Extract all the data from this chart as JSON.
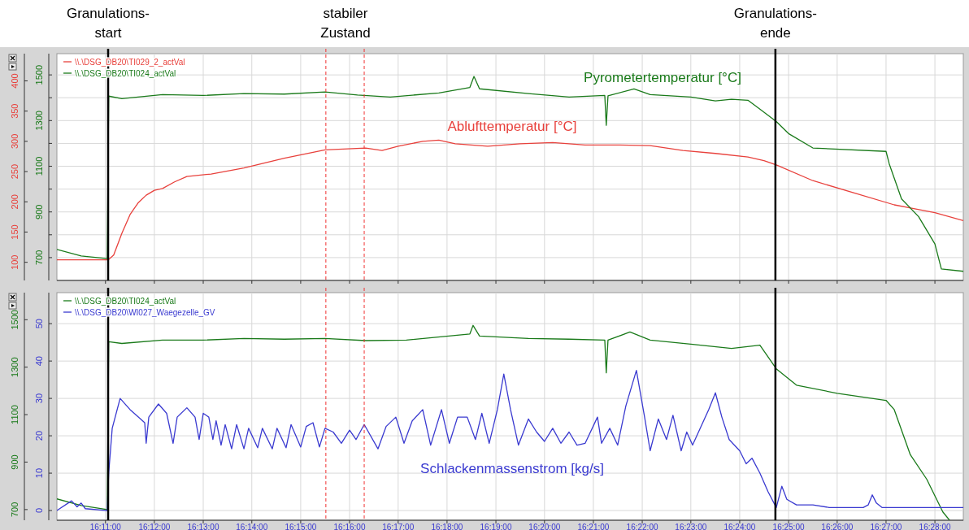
{
  "chart_data": [
    {
      "type": "line",
      "xlim": [
        16.1667,
        16.4764
      ],
      "xticks": [
        {
          "value": 16.1833,
          "label": null
        },
        {
          "value": 16.2,
          "label": null
        },
        {
          "value": 16.2167,
          "label": null
        },
        {
          "value": 16.2333,
          "label": null
        },
        {
          "value": 16.25,
          "label": null
        },
        {
          "value": 16.2667,
          "label": null
        },
        {
          "value": 16.2833,
          "label": null
        },
        {
          "value": 16.3,
          "label": null
        },
        {
          "value": 16.3167,
          "label": null
        },
        {
          "value": 16.3333,
          "label": null
        },
        {
          "value": 16.35,
          "label": null
        },
        {
          "value": 16.3667,
          "label": null
        },
        {
          "value": 16.3833,
          "label": null
        },
        {
          "value": 16.4,
          "label": null
        },
        {
          "value": 16.4167,
          "label": null
        },
        {
          "value": 16.4333,
          "label": null
        },
        {
          "value": 16.45,
          "label": null
        },
        {
          "value": 16.4667,
          "label": null
        }
      ],
      "ylim": [
        70,
        445
      ],
      "yticks": [
        100,
        150,
        200,
        250,
        300,
        350,
        400
      ],
      "y2lim": [
        600,
        1593
      ],
      "y2ticks": [
        700,
        {
          "value": 800,
          "label": null
        },
        900,
        {
          "value": 1000,
          "label": null
        },
        1100,
        {
          "value": 1200,
          "label": null
        },
        1300,
        {
          "value": 1400,
          "label": null
        },
        1500
      ],
      "tick_labels": "y",
      "grid": true,
      "legend": "top left",
      "series": [
        {
          "name": "\\\\.\\DSG_DB20\\TI029_2_actVal",
          "color": "#e8413c",
          "axis": "y",
          "x": [
            16.1667,
            16.1842,
            16.1861,
            16.1889,
            16.1917,
            16.1944,
            16.1972,
            16.2,
            16.2028,
            16.2069,
            16.2111,
            16.2194,
            16.2306,
            16.2444,
            16.2583,
            16.2722,
            16.2778,
            16.2833,
            16.2917,
            16.2972,
            16.3028,
            16.3139,
            16.325,
            16.3361,
            16.3472,
            16.3583,
            16.3694,
            16.3806,
            16.3917,
            16.4028,
            16.4083,
            16.4125,
            16.425,
            16.4389,
            16.4528,
            16.4667,
            16.4764
          ],
          "values": [
            104,
            104,
            112,
            148,
            179,
            198,
            211,
            219,
            222,
            233,
            242,
            246,
            256,
            272,
            286,
            289,
            285,
            292,
            300,
            302,
            296,
            292,
            296,
            298,
            294,
            294,
            293,
            285,
            280,
            274,
            268,
            261,
            235,
            215,
            195,
            182,
            169
          ]
        },
        {
          "name": "\\\\.\\DSG_DB20\\TI024_actVal",
          "color": "#1a7a1a",
          "axis": "y2",
          "x": [
            16.1667,
            16.175,
            16.1839,
            16.1844,
            16.1889,
            16.1944,
            16.2028,
            16.2167,
            16.2306,
            16.2444,
            16.2583,
            16.2694,
            16.2806,
            16.2972,
            16.3078,
            16.3092,
            16.3111,
            16.3278,
            16.3417,
            16.3539,
            16.3544,
            16.355,
            16.3639,
            16.3694,
            16.3833,
            16.3917,
            16.3972,
            16.4028,
            16.4069,
            16.4125,
            16.4167,
            16.425,
            16.45,
            16.4511,
            16.4553,
            16.4611,
            16.4667,
            16.4689,
            16.4764
          ],
          "values": [
            736,
            707,
            696,
            1407,
            1396,
            1403,
            1414,
            1410,
            1418,
            1416,
            1425,
            1412,
            1403,
            1421,
            1445,
            1493,
            1439,
            1418,
            1403,
            1410,
            1279,
            1408,
            1439,
            1414,
            1403,
            1386,
            1393,
            1389,
            1350,
            1296,
            1243,
            1180,
            1165,
            1110,
            957,
            880,
            760,
            650,
            640
          ]
        }
      ],
      "ref_lines": [
        {
          "axis": "x",
          "value": 16.1842,
          "label": "Granulations-\nstart",
          "color": "#000000",
          "line_style": "solid"
        },
        {
          "axis": "x",
          "value": 16.2586,
          "label": null,
          "color": "#f03030",
          "line_style": "dashed"
        },
        {
          "axis": "x",
          "value": 16.2717,
          "label": null,
          "color": "#f03030",
          "line_style": "dashed"
        },
        {
          "axis": "x",
          "value": 16.4122,
          "label": "Granulations-\nende",
          "color": "#000000",
          "line_style": "solid"
        }
      ],
      "annotations": [
        "stabiler\nZustand",
        "Pyrometertemperatur [°C]",
        "Ablufttemperatur [°C]"
      ]
    },
    {
      "type": "line",
      "xlim": [
        16.1667,
        16.4764
      ],
      "xticks": [
        {
          "value": 16.1833,
          "label": "16:11:00"
        },
        {
          "value": 16.2,
          "label": "16:12:00"
        },
        {
          "value": 16.2167,
          "label": "16:13:00"
        },
        {
          "value": 16.2333,
          "label": "16:14:00"
        },
        {
          "value": 16.25,
          "label": "16:15:00"
        },
        {
          "value": 16.2667,
          "label": "16:16:00"
        },
        {
          "value": 16.2833,
          "label": "16:17:00"
        },
        {
          "value": 16.3,
          "label": "16:18:00"
        },
        {
          "value": 16.3167,
          "label": "16:19:00"
        },
        {
          "value": 16.3333,
          "label": "16:20:00"
        },
        {
          "value": 16.35,
          "label": "16:21:00"
        },
        {
          "value": 16.3667,
          "label": "16:22:00"
        },
        {
          "value": 16.3833,
          "label": "16:23:00"
        },
        {
          "value": 16.4,
          "label": "16:24:00"
        },
        {
          "value": 16.4167,
          "label": "16:25:00"
        },
        {
          "value": 16.4333,
          "label": "16:26:00"
        },
        {
          "value": 16.45,
          "label": "16:27:00"
        },
        {
          "value": 16.4667,
          "label": "16:28:00"
        }
      ],
      "ylim": [
        655,
        1614
      ],
      "yticks": [
        700,
        900,
        1100,
        1300,
        1500
      ],
      "y2lim": [
        -2.6,
        58.3
      ],
      "y2ticks": [
        0,
        10,
        20,
        30,
        40,
        50
      ],
      "grid": true,
      "legend": "top left",
      "series": [
        {
          "name": "\\\\.\\DSG_DB20\\TI024_actVal",
          "color": "#1a7a1a",
          "axis": "y",
          "x": [
            16.1667,
            16.175,
            16.1839,
            16.1844,
            16.1889,
            16.2028,
            16.2167,
            16.2306,
            16.2444,
            16.2583,
            16.2722,
            16.2861,
            16.3078,
            16.3089,
            16.3111,
            16.3278,
            16.3417,
            16.3539,
            16.3544,
            16.355,
            16.3625,
            16.3694,
            16.3833,
            16.3972,
            16.4069,
            16.4125,
            16.4194,
            16.4333,
            16.45,
            16.4528,
            16.4583,
            16.4639,
            16.4694,
            16.4717
          ],
          "values": [
            745,
            717,
            700,
            1407,
            1400,
            1414,
            1414,
            1421,
            1418,
            1421,
            1412,
            1414,
            1440,
            1476,
            1431,
            1421,
            1418,
            1414,
            1276,
            1414,
            1448,
            1414,
            1397,
            1379,
            1393,
            1293,
            1224,
            1190,
            1160,
            1121,
            931,
            828,
            690,
            655
          ]
        },
        {
          "name": "\\\\.\\DSG_DB20\\WI027_Waegezelle_GV",
          "color": "#3a3ad0",
          "axis": "y2",
          "x": [
            16.1667,
            16.1717,
            16.1736,
            16.175,
            16.1764,
            16.1839,
            16.1844,
            16.1856,
            16.1883,
            16.1917,
            16.1967,
            16.1972,
            16.1981,
            16.2014,
            16.2042,
            16.2064,
            16.2078,
            16.2111,
            16.2139,
            16.2153,
            16.2167,
            16.2186,
            16.22,
            16.2211,
            16.2228,
            16.2242,
            16.2264,
            16.2281,
            16.2306,
            16.2322,
            16.2353,
            16.2369,
            16.2403,
            16.2419,
            16.245,
            16.2467,
            16.25,
            16.2519,
            16.2542,
            16.2564,
            16.2583,
            16.2611,
            16.2639,
            16.2667,
            16.2689,
            16.2717,
            16.2764,
            16.2792,
            16.2825,
            16.2853,
            16.2881,
            16.2917,
            16.2944,
            16.2981,
            16.3008,
            16.3036,
            16.3069,
            16.3097,
            16.3119,
            16.3144,
            16.3172,
            16.3194,
            16.3217,
            16.3244,
            16.3278,
            16.3306,
            16.3333,
            16.3361,
            16.3389,
            16.3417,
            16.3444,
            16.3472,
            16.3514,
            16.3528,
            16.3556,
            16.3583,
            16.3611,
            16.3647,
            16.3675,
            16.3694,
            16.3722,
            16.375,
            16.3772,
            16.38,
            16.3819,
            16.3839,
            16.3894,
            16.3917,
            16.3939,
            16.3964,
            16.4,
            16.4022,
            16.4042,
            16.4069,
            16.4097,
            16.4125,
            16.4144,
            16.4161,
            16.4194,
            16.425,
            16.4306,
            16.4422,
            16.4439,
            16.4453,
            16.4467,
            16.4486,
            16.4764
          ],
          "values": [
            0,
            2.6,
            1,
            2,
            0.5,
            0,
            10,
            22,
            30,
            27,
            23.5,
            18,
            25,
            28.5,
            26,
            18,
            25,
            27.5,
            25,
            19,
            26,
            25,
            19,
            24,
            17.5,
            23,
            16.5,
            23,
            16.5,
            22,
            16.8,
            22,
            16.5,
            22,
            16.8,
            23,
            17,
            22.5,
            23.5,
            17,
            22,
            21,
            18,
            21.5,
            19,
            23,
            16.5,
            22.5,
            25,
            18,
            24,
            27,
            17.5,
            27,
            18,
            25,
            25,
            19,
            26,
            18,
            27,
            36.5,
            27,
            17.5,
            24.5,
            21,
            18.5,
            22,
            18,
            21,
            17.5,
            18,
            25,
            18,
            22,
            17.5,
            28,
            37.5,
            25,
            16,
            24.5,
            19,
            25.5,
            16,
            21,
            17.5,
            27,
            31.5,
            25,
            19,
            16,
            12.5,
            14,
            10,
            5,
            0.8,
            6.5,
            3,
            1.5,
            1.5,
            0.8,
            0.8,
            1.5,
            4.2,
            2,
            0.8,
            0.8
          ]
        }
      ],
      "ref_lines": [
        {
          "axis": "x",
          "value": 16.1842,
          "color": "#000000",
          "line_style": "solid"
        },
        {
          "axis": "x",
          "value": 16.2586,
          "color": "#f03030",
          "line_style": "dashed"
        },
        {
          "axis": "x",
          "value": 16.2717,
          "color": "#f03030",
          "line_style": "dashed"
        },
        {
          "axis": "x",
          "value": 16.4122,
          "color": "#000000",
          "line_style": "solid"
        }
      ],
      "annotations": [
        "Schlackenmassenstrom [kg/s]"
      ]
    }
  ]
}
